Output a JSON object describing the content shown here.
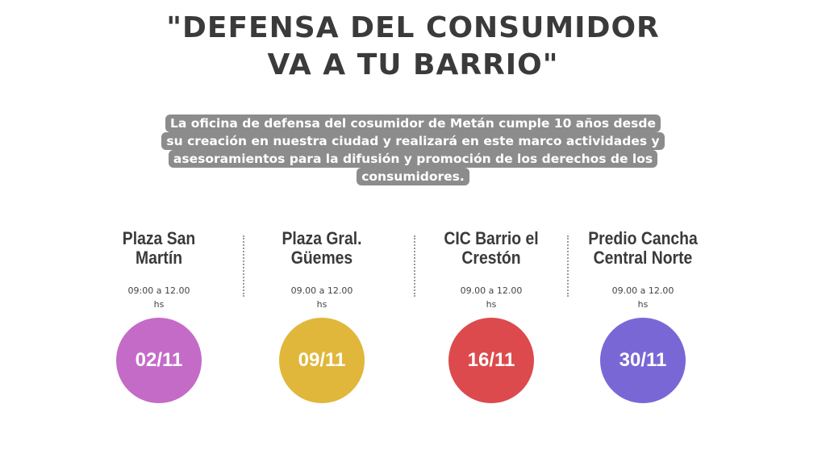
{
  "title": {
    "line1": "\"DEFENSA DEL CONSUMIDOR",
    "line2": "VA A TU BARRIO\""
  },
  "intro": {
    "lines": [
      "La oficina de defensa del cosumidor de Metán cumple 10 años desde",
      "su creación en nuestra ciudad y realizará en este marco  actividades y",
      "asesoramientos para la difusión y promoción de los derechos de los",
      "consumidores."
    ]
  },
  "events": [
    {
      "place_line1": "Plaza San",
      "place_line2": "Martín",
      "time_line1": "09:00 a 12.00",
      "time_line2": "hs",
      "date": "02/11",
      "color": "#c46bc8"
    },
    {
      "place_line1": "Plaza Gral.",
      "place_line2": "Güemes",
      "time_line1": "09.00 a 12.00",
      "time_line2": "hs",
      "date": "09/11",
      "color": "#e0b73a"
    },
    {
      "place_line1": "CIC Barrio el",
      "place_line2": "Crestón",
      "time_line1": "09.00 a 12.00",
      "time_line2": "hs",
      "date": "16/11",
      "color": "#dc4a4d"
    },
    {
      "place_line1": "Predio Cancha",
      "place_line2": "Central Norte",
      "time_line1": "09.00 a 12.00",
      "time_line2": "hs",
      "date": "30/11",
      "color": "#7a67d6"
    }
  ]
}
